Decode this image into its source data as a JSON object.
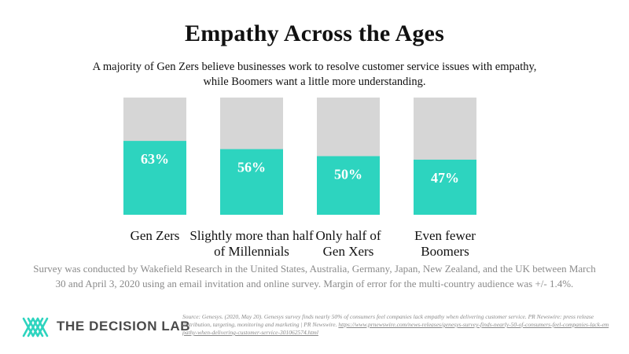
{
  "title": "Empathy Across the Ages",
  "subtitle": "A majority of Gen Zers believe businesses work to resolve customer service issues with empathy, while Boomers want a little more understanding.",
  "chart_data": {
    "type": "bar",
    "categories": [
      [
        "Gen Zers"
      ],
      [
        "Slightly more than half",
        "of Millennials"
      ],
      [
        "Only half of",
        "Gen Xers"
      ],
      [
        "Even fewer",
        "Boomers"
      ]
    ],
    "values": [
      63,
      56,
      50,
      47
    ],
    "value_labels": [
      "63%",
      "56%",
      "50%",
      "47%"
    ],
    "ylim": [
      0,
      100
    ],
    "grid": false,
    "colors": {
      "bar": "#2dd4bf",
      "track": "#d6d6d6"
    }
  },
  "footnote": "Survey was conducted by Wakefield Research in the United States, Australia, Germany, Japan, New Zealand, and the UK between March 30 and April 3, 2020 using an email invitation and online survey. Margin of error for the multi-country audience was +/- 1.4%.",
  "brand": "THE DECISION LAB",
  "brand_logo_color": "#2dd4bf",
  "source_text": "Source: Genesys. (2020, May 20). Genesys survey finds nearly 50% of consumers feel companies lack empathy when delivering customer service. PR Newswire: press release distribution, targeting, monitoring and marketing | PR Newswire.",
  "source_url": "https://www.prnewswire.com/news-releases/genesys-survey-finds-nearly-50-of-consumers-feel-companies-lack-empathy-when-delivering-customer-service-301062574.html"
}
